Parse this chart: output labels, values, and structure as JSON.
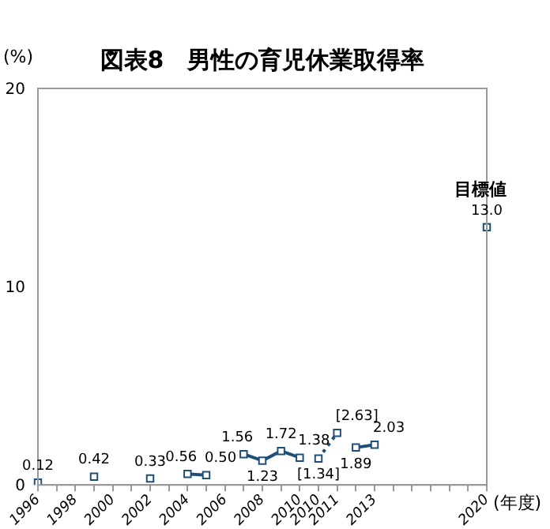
{
  "chart_data": {
    "type": "line",
    "title": "図表8　男性の育児休業取得率",
    "ylabel": "(%)",
    "xlabel": "(年度)",
    "categories": [
      "1996",
      null,
      "1998",
      null,
      "2000",
      null,
      "2002",
      null,
      "2004",
      null,
      "2006",
      null,
      "2008",
      null,
      "2010",
      "2010",
      "2011",
      null,
      "2013",
      null,
      null,
      null,
      null,
      null,
      "2020"
    ],
    "series": [
      {
        "color": "#1f4e79",
        "line_style": "solid",
        "values": [
          0.12,
          null,
          null,
          0.42,
          null,
          null,
          0.33,
          null,
          0.56,
          0.5,
          null,
          1.56,
          1.23,
          1.72,
          1.38,
          null,
          null,
          1.89,
          2.03,
          null,
          null,
          null,
          null,
          null,
          13.0
        ],
        "value_labels": [
          "0.12",
          null,
          null,
          "0.42",
          null,
          null,
          "0.33",
          null,
          "0.56",
          "0.50",
          null,
          "1.56",
          "1.23",
          "1.72",
          "1.38",
          null,
          null,
          "1.89",
          "2.03",
          null,
          null,
          null,
          null,
          null,
          "13.0"
        ]
      },
      {
        "color": "#1f4e79",
        "line_style": "dotted",
        "values": [
          null,
          null,
          null,
          null,
          null,
          null,
          null,
          null,
          null,
          null,
          null,
          null,
          null,
          null,
          null,
          1.34,
          2.63,
          null,
          null,
          null,
          null,
          null,
          null,
          null,
          null
        ],
        "value_labels": [
          null,
          null,
          null,
          null,
          null,
          null,
          null,
          null,
          null,
          null,
          null,
          null,
          null,
          null,
          null,
          "[1.34]",
          "[2.63]",
          null,
          null,
          null,
          null,
          null,
          null,
          null,
          null
        ]
      }
    ],
    "marker": "square",
    "ylim": [
      0,
      20
    ],
    "yticks": [
      0,
      10,
      20
    ],
    "grid": false,
    "legend": false,
    "annotations": [
      {
        "text": "目標値",
        "x": "2020",
        "y": 13.0
      }
    ]
  }
}
